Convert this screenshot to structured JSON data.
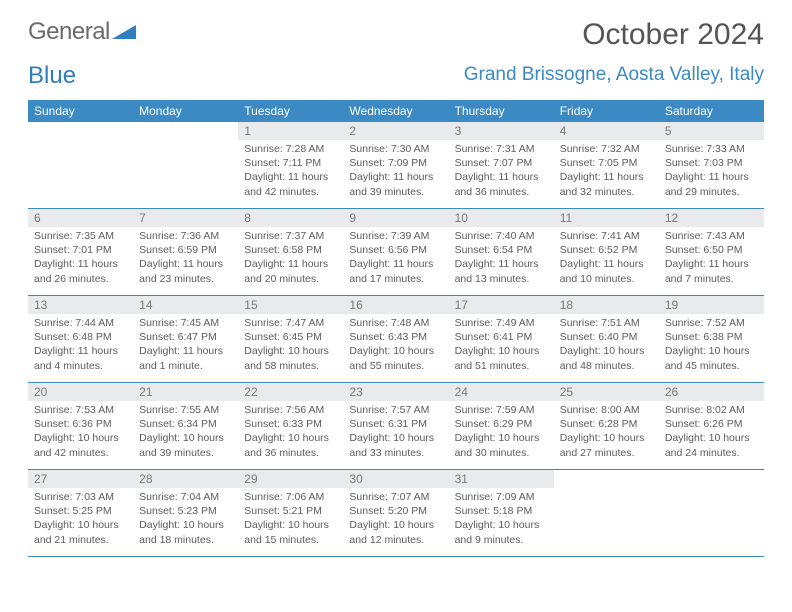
{
  "brand": {
    "word1": "General",
    "word2": "Blue"
  },
  "header": {
    "month_title": "October 2024",
    "location": "Grand Brissogne, Aosta Valley, Italy"
  },
  "colors": {
    "header_blue": "#3b8ac4",
    "daynum_bg": "#e9eaeb",
    "text": "#5c5c5c"
  },
  "dayNames": [
    "Sunday",
    "Monday",
    "Tuesday",
    "Wednesday",
    "Thursday",
    "Friday",
    "Saturday"
  ],
  "weeks": [
    [
      {
        "n": "",
        "sr": "",
        "ss": "",
        "dl": ""
      },
      {
        "n": "",
        "sr": "",
        "ss": "",
        "dl": ""
      },
      {
        "n": "1",
        "sr": "Sunrise: 7:28 AM",
        "ss": "Sunset: 7:11 PM",
        "dl": "Daylight: 11 hours and 42 minutes."
      },
      {
        "n": "2",
        "sr": "Sunrise: 7:30 AM",
        "ss": "Sunset: 7:09 PM",
        "dl": "Daylight: 11 hours and 39 minutes."
      },
      {
        "n": "3",
        "sr": "Sunrise: 7:31 AM",
        "ss": "Sunset: 7:07 PM",
        "dl": "Daylight: 11 hours and 36 minutes."
      },
      {
        "n": "4",
        "sr": "Sunrise: 7:32 AM",
        "ss": "Sunset: 7:05 PM",
        "dl": "Daylight: 11 hours and 32 minutes."
      },
      {
        "n": "5",
        "sr": "Sunrise: 7:33 AM",
        "ss": "Sunset: 7:03 PM",
        "dl": "Daylight: 11 hours and 29 minutes."
      }
    ],
    [
      {
        "n": "6",
        "sr": "Sunrise: 7:35 AM",
        "ss": "Sunset: 7:01 PM",
        "dl": "Daylight: 11 hours and 26 minutes."
      },
      {
        "n": "7",
        "sr": "Sunrise: 7:36 AM",
        "ss": "Sunset: 6:59 PM",
        "dl": "Daylight: 11 hours and 23 minutes."
      },
      {
        "n": "8",
        "sr": "Sunrise: 7:37 AM",
        "ss": "Sunset: 6:58 PM",
        "dl": "Daylight: 11 hours and 20 minutes."
      },
      {
        "n": "9",
        "sr": "Sunrise: 7:39 AM",
        "ss": "Sunset: 6:56 PM",
        "dl": "Daylight: 11 hours and 17 minutes."
      },
      {
        "n": "10",
        "sr": "Sunrise: 7:40 AM",
        "ss": "Sunset: 6:54 PM",
        "dl": "Daylight: 11 hours and 13 minutes."
      },
      {
        "n": "11",
        "sr": "Sunrise: 7:41 AM",
        "ss": "Sunset: 6:52 PM",
        "dl": "Daylight: 11 hours and 10 minutes."
      },
      {
        "n": "12",
        "sr": "Sunrise: 7:43 AM",
        "ss": "Sunset: 6:50 PM",
        "dl": "Daylight: 11 hours and 7 minutes."
      }
    ],
    [
      {
        "n": "13",
        "sr": "Sunrise: 7:44 AM",
        "ss": "Sunset: 6:48 PM",
        "dl": "Daylight: 11 hours and 4 minutes."
      },
      {
        "n": "14",
        "sr": "Sunrise: 7:45 AM",
        "ss": "Sunset: 6:47 PM",
        "dl": "Daylight: 11 hours and 1 minute."
      },
      {
        "n": "15",
        "sr": "Sunrise: 7:47 AM",
        "ss": "Sunset: 6:45 PM",
        "dl": "Daylight: 10 hours and 58 minutes."
      },
      {
        "n": "16",
        "sr": "Sunrise: 7:48 AM",
        "ss": "Sunset: 6:43 PM",
        "dl": "Daylight: 10 hours and 55 minutes."
      },
      {
        "n": "17",
        "sr": "Sunrise: 7:49 AM",
        "ss": "Sunset: 6:41 PM",
        "dl": "Daylight: 10 hours and 51 minutes."
      },
      {
        "n": "18",
        "sr": "Sunrise: 7:51 AM",
        "ss": "Sunset: 6:40 PM",
        "dl": "Daylight: 10 hours and 48 minutes."
      },
      {
        "n": "19",
        "sr": "Sunrise: 7:52 AM",
        "ss": "Sunset: 6:38 PM",
        "dl": "Daylight: 10 hours and 45 minutes."
      }
    ],
    [
      {
        "n": "20",
        "sr": "Sunrise: 7:53 AM",
        "ss": "Sunset: 6:36 PM",
        "dl": "Daylight: 10 hours and 42 minutes."
      },
      {
        "n": "21",
        "sr": "Sunrise: 7:55 AM",
        "ss": "Sunset: 6:34 PM",
        "dl": "Daylight: 10 hours and 39 minutes."
      },
      {
        "n": "22",
        "sr": "Sunrise: 7:56 AM",
        "ss": "Sunset: 6:33 PM",
        "dl": "Daylight: 10 hours and 36 minutes."
      },
      {
        "n": "23",
        "sr": "Sunrise: 7:57 AM",
        "ss": "Sunset: 6:31 PM",
        "dl": "Daylight: 10 hours and 33 minutes."
      },
      {
        "n": "24",
        "sr": "Sunrise: 7:59 AM",
        "ss": "Sunset: 6:29 PM",
        "dl": "Daylight: 10 hours and 30 minutes."
      },
      {
        "n": "25",
        "sr": "Sunrise: 8:00 AM",
        "ss": "Sunset: 6:28 PM",
        "dl": "Daylight: 10 hours and 27 minutes."
      },
      {
        "n": "26",
        "sr": "Sunrise: 8:02 AM",
        "ss": "Sunset: 6:26 PM",
        "dl": "Daylight: 10 hours and 24 minutes."
      }
    ],
    [
      {
        "n": "27",
        "sr": "Sunrise: 7:03 AM",
        "ss": "Sunset: 5:25 PM",
        "dl": "Daylight: 10 hours and 21 minutes."
      },
      {
        "n": "28",
        "sr": "Sunrise: 7:04 AM",
        "ss": "Sunset: 5:23 PM",
        "dl": "Daylight: 10 hours and 18 minutes."
      },
      {
        "n": "29",
        "sr": "Sunrise: 7:06 AM",
        "ss": "Sunset: 5:21 PM",
        "dl": "Daylight: 10 hours and 15 minutes."
      },
      {
        "n": "30",
        "sr": "Sunrise: 7:07 AM",
        "ss": "Sunset: 5:20 PM",
        "dl": "Daylight: 10 hours and 12 minutes."
      },
      {
        "n": "31",
        "sr": "Sunrise: 7:09 AM",
        "ss": "Sunset: 5:18 PM",
        "dl": "Daylight: 10 hours and 9 minutes."
      },
      {
        "n": "",
        "sr": "",
        "ss": "",
        "dl": ""
      },
      {
        "n": "",
        "sr": "",
        "ss": "",
        "dl": ""
      }
    ]
  ]
}
